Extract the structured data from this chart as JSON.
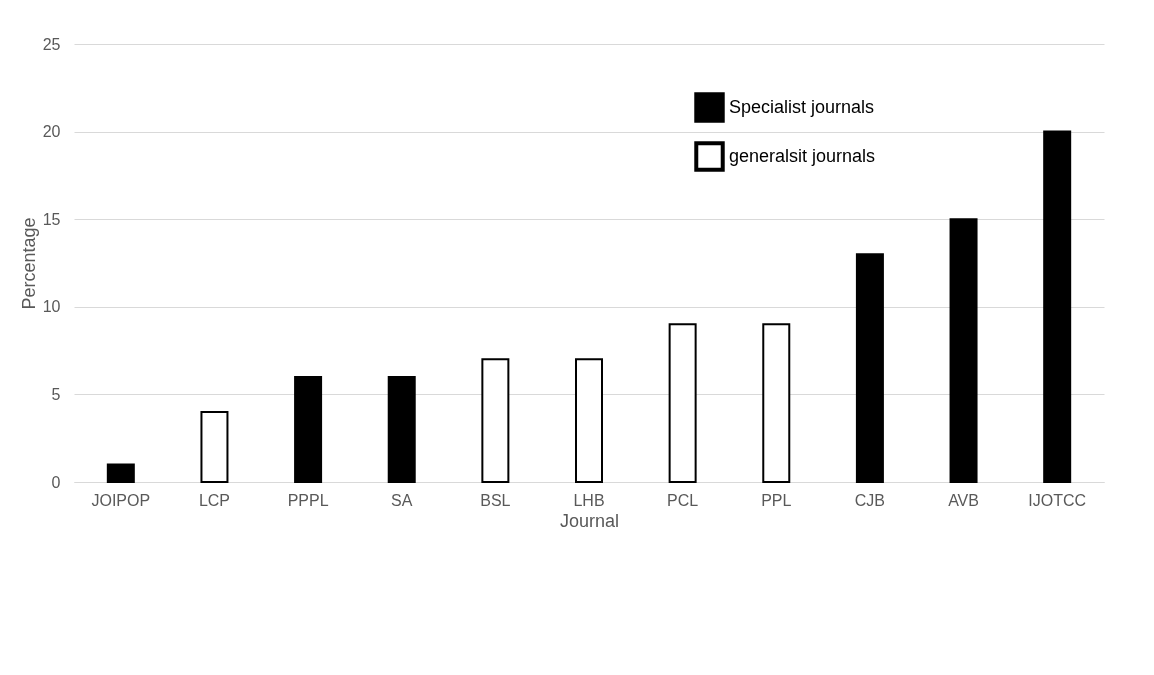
{
  "chart_data": {
    "type": "bar",
    "xlabel": "Journal",
    "ylabel": "Percentage",
    "categories": [
      "JOIPOP",
      "LCP",
      "PPPL",
      "SA",
      "BSL",
      "LHB",
      "PCL",
      "PPL",
      "CJB",
      "AVB",
      "IJOTCC"
    ],
    "series": [
      {
        "name": "Specialist journals",
        "color": "#000000",
        "values": [
          1,
          null,
          6,
          6,
          null,
          null,
          null,
          null,
          13,
          15,
          20
        ]
      },
      {
        "name": "generalsit journals",
        "color": "#ffffff",
        "values": [
          null,
          4,
          null,
          null,
          7,
          7,
          9,
          9,
          null,
          null,
          null
        ]
      }
    ],
    "ylim": [
      0,
      25
    ],
    "yticks": [
      0,
      5,
      10,
      15,
      20,
      25
    ],
    "grid": "y",
    "legend": "top right"
  }
}
